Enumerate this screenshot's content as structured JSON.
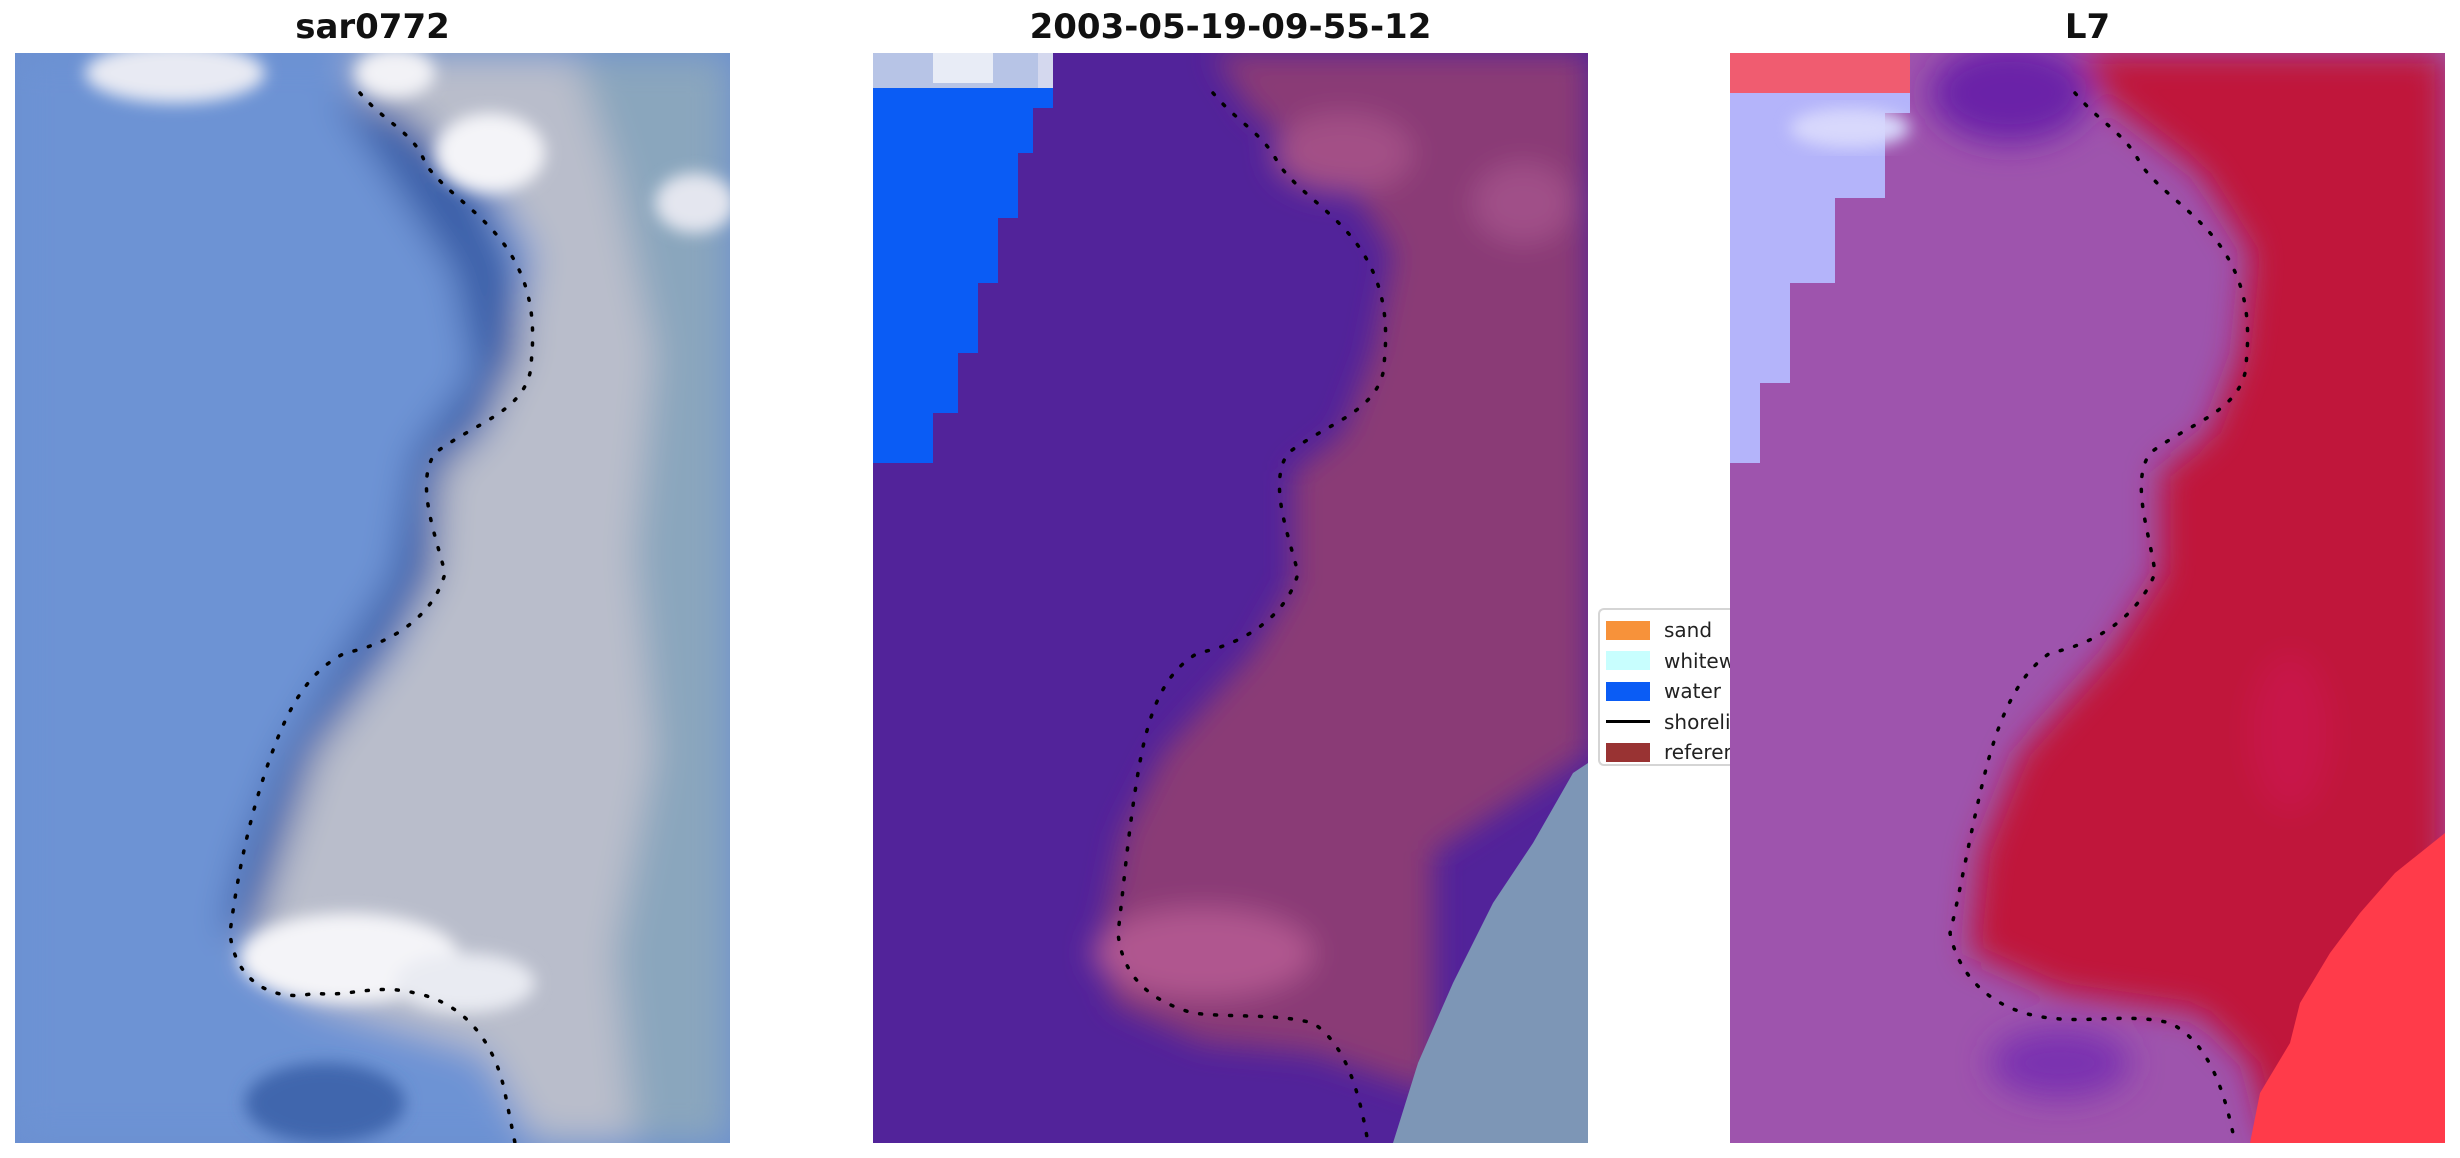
{
  "panels": [
    {
      "title": "sar0772"
    },
    {
      "title": "2003-05-19-09-55-12"
    },
    {
      "title": "L7"
    }
  ],
  "legend": {
    "items": [
      {
        "label": "sand",
        "color": "#f7923a",
        "kind": "patch"
      },
      {
        "label": "whitewater",
        "color": "#c8fefe",
        "kind": "patch"
      },
      {
        "label": "water",
        "color": "#0a5cf5",
        "kind": "patch"
      },
      {
        "label": "shoreline",
        "color": "#000000",
        "kind": "line"
      },
      {
        "label": "reference shoreline",
        "color": "#993333",
        "kind": "patch"
      }
    ]
  },
  "colors": {
    "rgb_water": "#6a8fd0",
    "rgb_deep_water": "#3f66ad",
    "rgb_land": "#c7c7d2",
    "rgb_surf": "#f2f2f6",
    "class_water": "#52239a",
    "class_land": "#8a3a76",
    "class_land_light": "#b0568f",
    "class_open_water": "#0a5cf5",
    "false_water": "#9e54ad",
    "false_land": "#c0123a",
    "false_bright": "#ff3b4a",
    "false_ice": "#b4b4fa"
  }
}
